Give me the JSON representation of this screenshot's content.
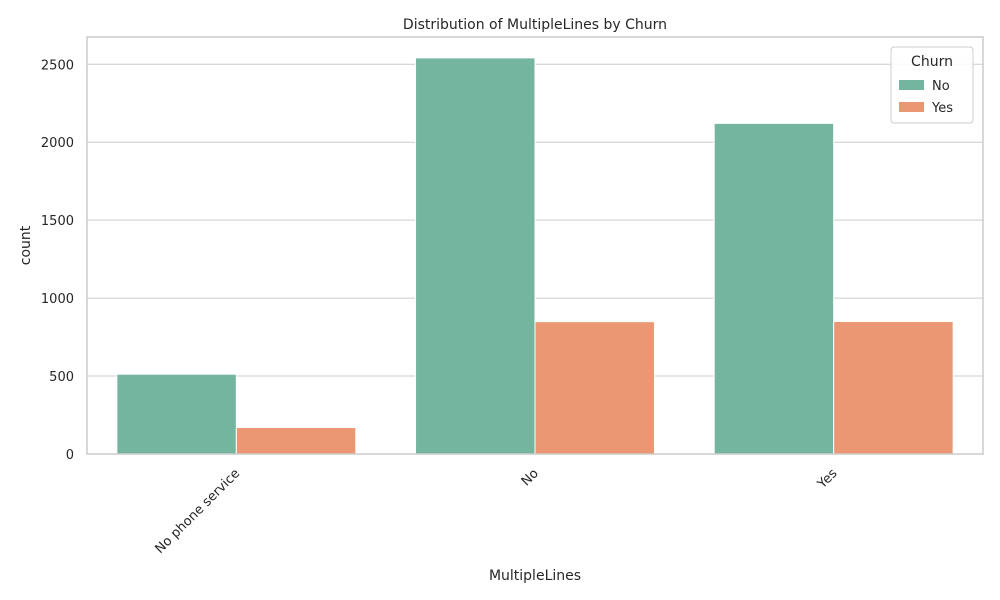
{
  "chart_data": {
    "type": "bar",
    "title": "Distribution of MultipleLines by Churn",
    "xlabel": "MultipleLines",
    "ylabel": "count",
    "categories": [
      "No phone service",
      "No",
      "Yes"
    ],
    "series": [
      {
        "name": "No",
        "values": [
          512,
          2541,
          2121
        ],
        "color": "#73b59f"
      },
      {
        "name": "Yes",
        "values": [
          170,
          849,
          850
        ],
        "color": "#eb9773"
      }
    ],
    "ylim": [
      0,
      2675
    ],
    "yticks": [
      0,
      500,
      1000,
      1500,
      2000,
      2500
    ],
    "grid": true,
    "legend": {
      "title": "Churn",
      "placement": "top-right"
    },
    "colors": {
      "grid": "#cccccc",
      "frame": "#cccccc",
      "text": "#262626"
    }
  }
}
